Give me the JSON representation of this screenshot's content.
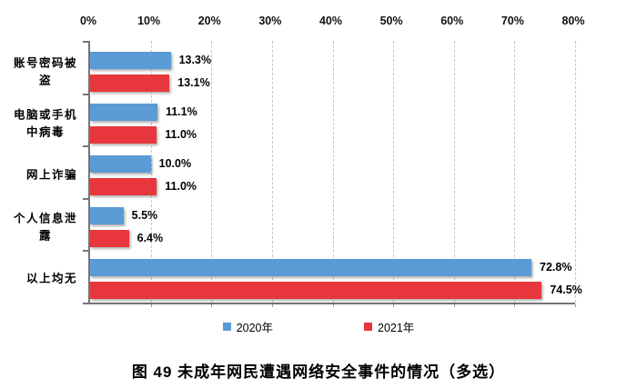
{
  "chart_data": {
    "type": "bar",
    "orientation": "horizontal",
    "title": "图 49 未成年网民遭遇网络安全事件的情况（多选）",
    "categories": [
      "账号密码被\n盗",
      "电脑或手机\n中病毒",
      "网上诈骗",
      "个人信息泄\n露",
      "以上均无"
    ],
    "series": [
      {
        "name": "2020年",
        "color": "#5B9BD5",
        "values": [
          13.3,
          11.1,
          10.0,
          5.5,
          72.8
        ]
      },
      {
        "name": "2021年",
        "color": "#E8373C",
        "values": [
          13.1,
          11.0,
          11.0,
          6.4,
          74.5
        ]
      }
    ],
    "xlim": [
      0,
      80
    ],
    "x_ticks": [
      "0%",
      "10%",
      "20%",
      "30%",
      "40%",
      "50%",
      "60%",
      "70%",
      "80%"
    ],
    "grid": "vertical-dashed",
    "legend_position": "bottom",
    "value_label_format": "one-decimal-percent"
  },
  "legend": {
    "items": [
      {
        "label": "2020年",
        "color": "#5B9BD5"
      },
      {
        "label": "2021年",
        "color": "#E8373C"
      }
    ]
  },
  "caption": "图 49 未成年网民遭遇网络安全事件的情况（多选）"
}
